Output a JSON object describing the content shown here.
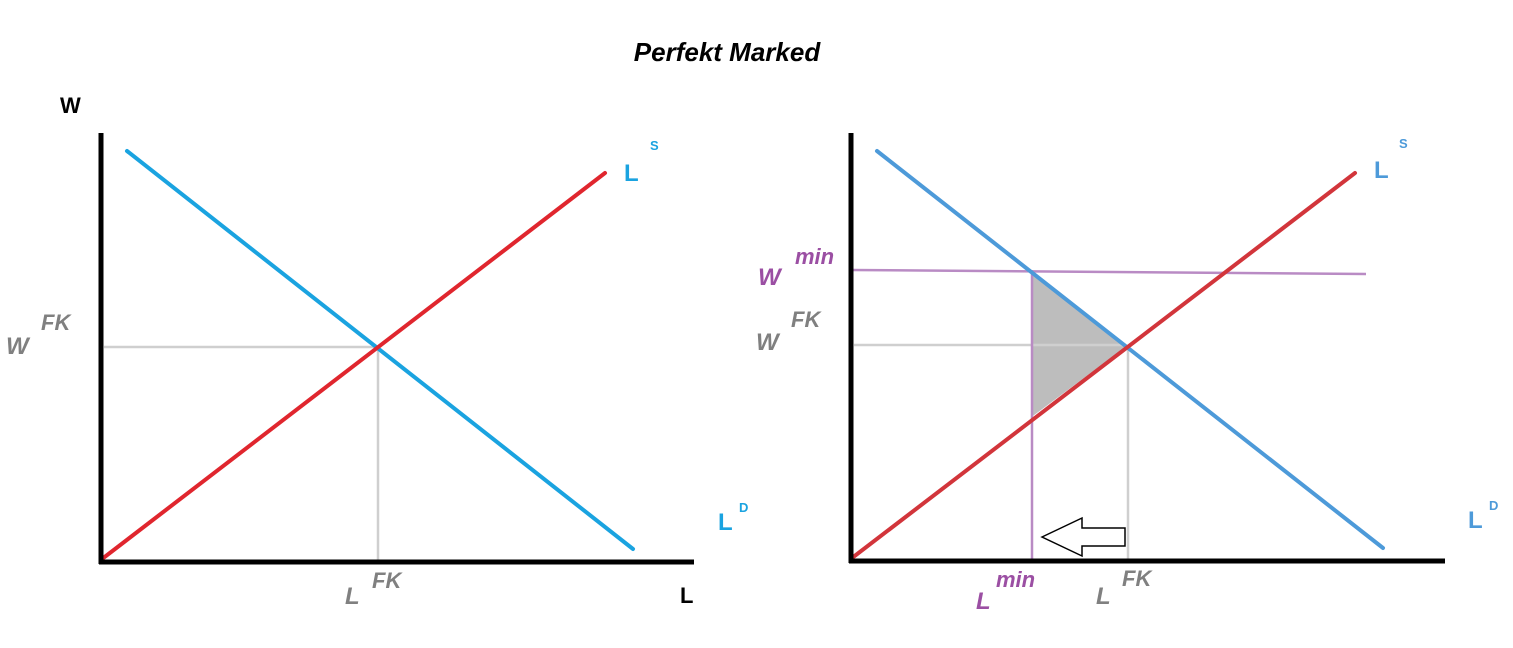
{
  "title": "Perfekt Marked",
  "colors": {
    "supply": "#e0262e",
    "demand": "#1aa3e0",
    "demand_right": "#4d9ad9",
    "guide": "#cfcfcf",
    "min": "#9b4fa3",
    "label_grey": "#808080",
    "shade": "#bdbdbd",
    "axis": "#000000"
  },
  "left_panel": {
    "y_axis_label": "W",
    "x_axis_label": "L",
    "supply_label": {
      "base": "L",
      "sup": "S"
    },
    "demand_label": {
      "base": "L",
      "sup": "D"
    },
    "eq_wage_label": {
      "base": "W",
      "sup": "FK"
    },
    "eq_qty_label": {
      "base": "L",
      "sup": "FK"
    }
  },
  "right_panel": {
    "supply_label": {
      "base": "L",
      "sup": "S"
    },
    "demand_label": {
      "base": "L",
      "sup": "D"
    },
    "min_wage_label": {
      "base": "W",
      "sup": "min"
    },
    "eq_wage_label": {
      "base": "W",
      "sup": "FK"
    },
    "min_qty_label": {
      "base": "L",
      "sup": "min"
    },
    "eq_qty_label": {
      "base": "L",
      "sup": "FK"
    },
    "arrow_direction": "left",
    "shaded_area": "deadweight-loss-triangle"
  }
}
